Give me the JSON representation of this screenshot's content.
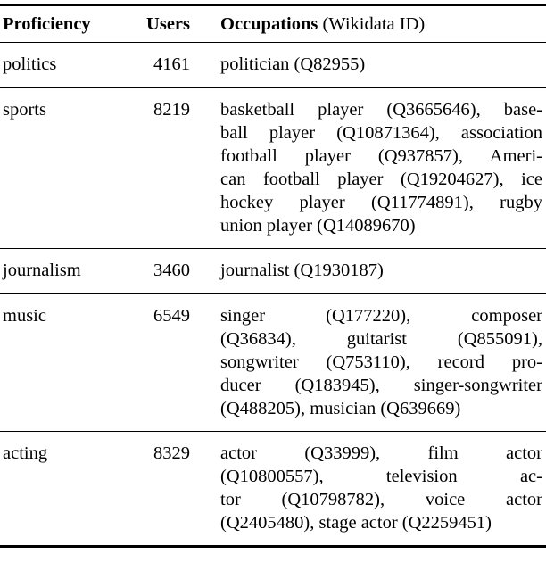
{
  "colors": {
    "text": "#000000",
    "rule": "#000000",
    "background": "#ffffff"
  },
  "table": {
    "header": {
      "proficiency": "Proficiency",
      "users": "Users",
      "occupations_bold": "Occupations",
      "occupations_note": " (Wikidata ID)"
    },
    "rows": [
      {
        "proficiency": "politics",
        "users": "4161",
        "occupation_lines": [
          "politician (Q82955)"
        ]
      },
      {
        "proficiency": "sports",
        "users": "8219",
        "occupation_lines": [
          "basketball player (Q3665646), base-",
          "ball player (Q10871364), association",
          "football player (Q937857), Ameri-",
          "can football player (Q19204627), ice",
          "hockey player (Q11774891), rugby",
          "union player (Q14089670)"
        ]
      },
      {
        "proficiency": "journalism",
        "users": "3460",
        "occupation_lines": [
          "journalist (Q1930187)"
        ]
      },
      {
        "proficiency": "music",
        "users": "6549",
        "occupation_lines": [
          "singer (Q177220), composer",
          "(Q36834), guitarist (Q855091),",
          "songwriter (Q753110), record pro-",
          "ducer (Q183945), singer-songwriter",
          "(Q488205), musician (Q639669)"
        ]
      },
      {
        "proficiency": "acting",
        "users": "8329",
        "occupation_lines": [
          "actor (Q33999), film actor",
          "(Q10800557), television ac-",
          "tor (Q10798782), voice actor",
          "(Q2405480), stage actor (Q2259451)"
        ]
      }
    ]
  }
}
